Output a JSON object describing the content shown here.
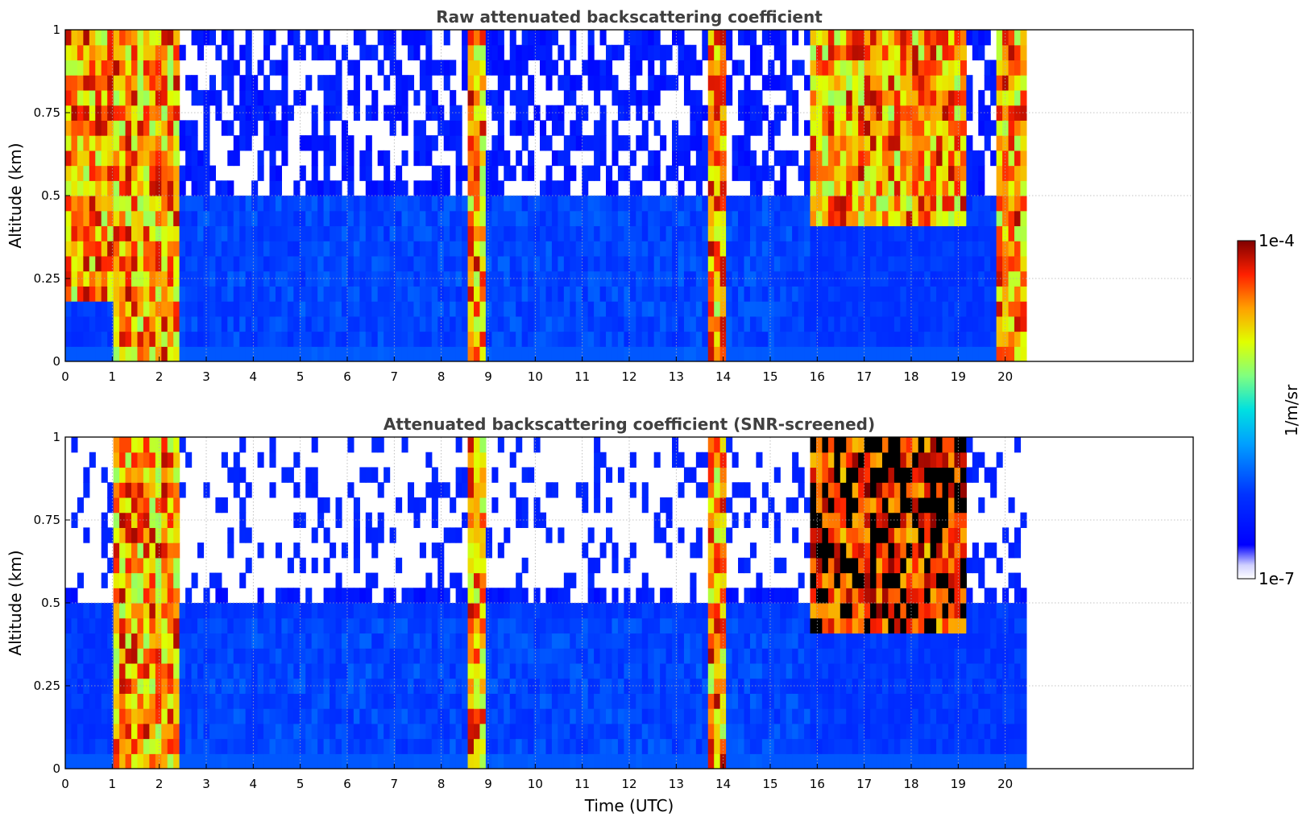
{
  "chart_data": [
    {
      "type": "heatmap",
      "title": "Raw attenuated backscattering coefficient",
      "ylabel": "Altitude (km)",
      "xlabel": "",
      "xlim": [
        0,
        24
      ],
      "ylim": [
        0,
        1
      ],
      "x_ticks": [
        "0",
        "1",
        "2",
        "3",
        "4",
        "5",
        "6",
        "7",
        "8",
        "9",
        "10",
        "11",
        "12",
        "13",
        "14",
        "15",
        "16",
        "17",
        "18",
        "19",
        "20"
      ],
      "y_ticks": [
        "0",
        "0.25",
        "0.5",
        "0.75",
        "1"
      ],
      "grid": true,
      "data_extent_hours": [
        0,
        20.45
      ],
      "features": [
        {
          "x_range": [
            1.0,
            2.4
          ],
          "y_range": [
            0,
            1
          ],
          "level": "high"
        },
        {
          "x_range": [
            0,
            1.0
          ],
          "y_range": [
            0.18,
            1
          ],
          "level": "high"
        },
        {
          "x_range": [
            8.55,
            8.9
          ],
          "y_range": [
            0,
            1
          ],
          "level": "high"
        },
        {
          "x_range": [
            13.7,
            14.1
          ],
          "y_range": [
            0,
            1
          ],
          "level": "high"
        },
        {
          "x_range": [
            15.9,
            19.2
          ],
          "y_range": [
            0.4,
            1
          ],
          "level": "high"
        },
        {
          "x_range": [
            19.8,
            20.45
          ],
          "y_range": [
            0,
            1
          ],
          "level": "high"
        },
        {
          "x_range": [
            2.4,
            15.9
          ],
          "y_range": [
            0,
            0.5
          ],
          "level": "low"
        }
      ]
    },
    {
      "type": "heatmap",
      "title": "Attenuated backscattering coefficient (SNR-screened)",
      "ylabel": "Altitude (km)",
      "xlabel": "Time (UTC)",
      "xlim": [
        0,
        24
      ],
      "ylim": [
        0,
        1
      ],
      "x_ticks": [
        "0",
        "1",
        "2",
        "3",
        "4",
        "5",
        "6",
        "7",
        "8",
        "9",
        "10",
        "11",
        "12",
        "13",
        "14",
        "15",
        "16",
        "17",
        "18",
        "19",
        "20"
      ],
      "y_ticks": [
        "0",
        "0.25",
        "0.5",
        "0.75",
        "1"
      ],
      "grid": true,
      "data_extent_hours": [
        0,
        20.45
      ],
      "features": [
        {
          "x_range": [
            1.0,
            2.4
          ],
          "y_range": [
            0,
            1
          ],
          "level": "high"
        },
        {
          "x_range": [
            8.55,
            8.9
          ],
          "y_range": [
            0,
            1
          ],
          "level": "high"
        },
        {
          "x_range": [
            13.7,
            14.1
          ],
          "y_range": [
            0,
            1
          ],
          "level": "high"
        },
        {
          "x_range": [
            15.9,
            19.2
          ],
          "y_range": [
            0.4,
            1
          ],
          "level": "saturated"
        },
        {
          "x_range": [
            2.4,
            15.9
          ],
          "y_range": [
            0,
            0.45
          ],
          "level": "low"
        }
      ]
    }
  ],
  "colorbar": {
    "max_label": "1e-4",
    "min_label": "1e-7",
    "unit_label": "1/m/sr",
    "scale": "log",
    "colormap": "jet"
  },
  "colors": {
    "title": "#404040",
    "grid": "#b0b0b0",
    "background": "#ffffff"
  }
}
